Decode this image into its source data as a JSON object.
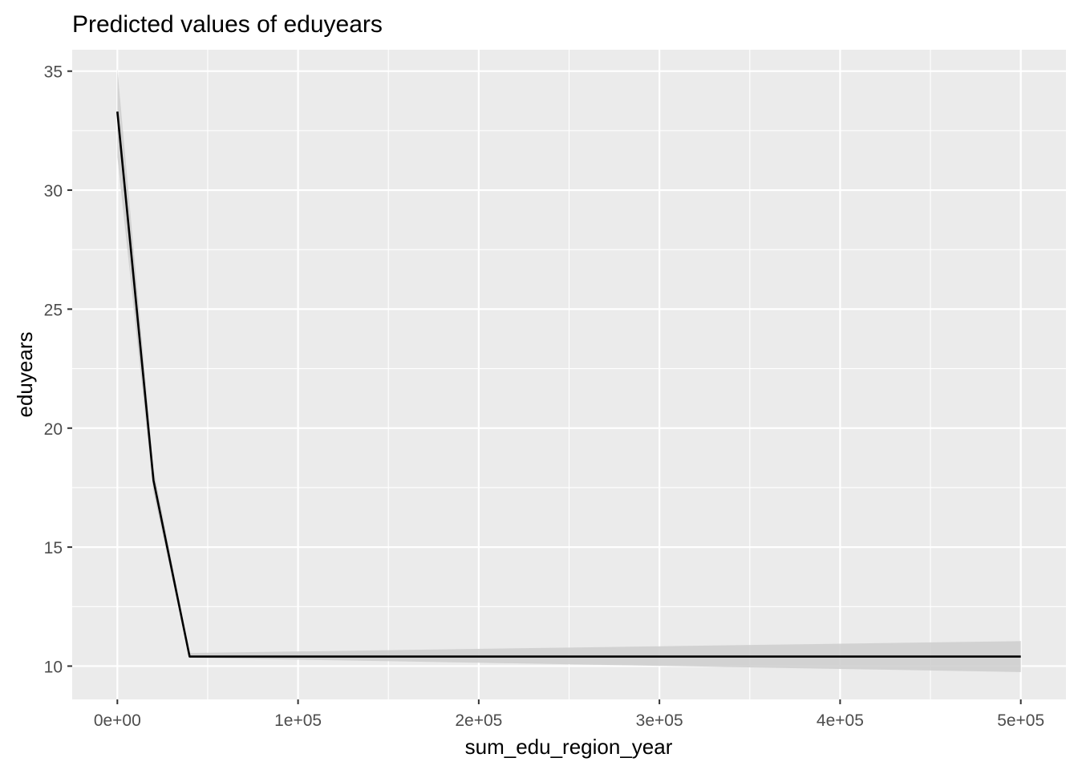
{
  "chart_data": {
    "type": "line",
    "title": "Predicted values of eduyears",
    "xlabel": "sum_edu_region_year",
    "ylabel": "eduyears",
    "xlim": [
      -25000,
      525000
    ],
    "ylim": [
      8.6,
      35.9
    ],
    "x_ticks": [
      {
        "value": 0,
        "label": "0e+00"
      },
      {
        "value": 100000,
        "label": "1e+05"
      },
      {
        "value": 200000,
        "label": "2e+05"
      },
      {
        "value": 300000,
        "label": "3e+05"
      },
      {
        "value": 400000,
        "label": "4e+05"
      },
      {
        "value": 500000,
        "label": "5e+05"
      }
    ],
    "x_minor": [
      50000,
      150000,
      250000,
      350000,
      450000
    ],
    "y_ticks": [
      {
        "value": 10,
        "label": "10"
      },
      {
        "value": 15,
        "label": "15"
      },
      {
        "value": 20,
        "label": "20"
      },
      {
        "value": 25,
        "label": "25"
      },
      {
        "value": 30,
        "label": "30"
      },
      {
        "value": 35,
        "label": "35"
      }
    ],
    "y_minor": [
      12.5,
      17.5,
      22.5,
      27.5,
      32.5
    ],
    "grid": true,
    "series": [
      {
        "x": [
          0,
          20000,
          40000,
          500000
        ],
        "values": [
          33.3,
          17.8,
          10.4,
          10.4
        ],
        "ci_low": [
          31.4,
          17.3,
          10.35,
          9.75
        ],
        "ci_high": [
          35.1,
          18.3,
          10.55,
          11.05
        ],
        "color": "#000000",
        "ci_color": "#cfcfcf"
      }
    ],
    "panel_color": "#ebebeb",
    "grid_color": "#ffffff"
  }
}
